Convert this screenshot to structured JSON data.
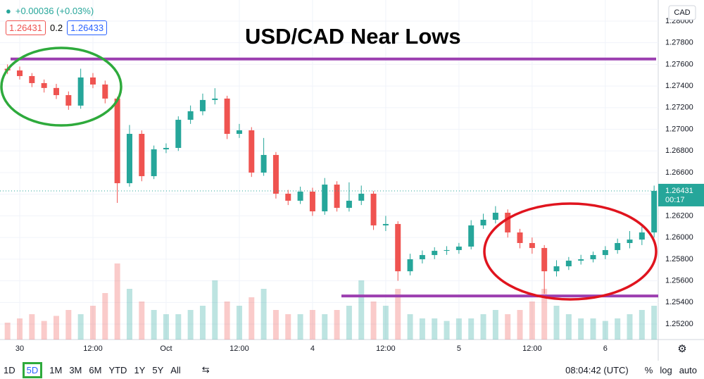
{
  "chart_data": {
    "type": "candlestick",
    "title": "USD/CAD Near Lows",
    "change": "+0.00036 (+0.03%)",
    "bid": 1.26431,
    "spread": 0.2,
    "ask": 1.26433,
    "currency": "CAD",
    "last_price": 1.26431,
    "countdown": "00:17",
    "categories": [
      null,
      "30",
      null,
      null,
      null,
      null,
      null,
      "12:00",
      null,
      null,
      null,
      null,
      null,
      "Oct",
      null,
      null,
      null,
      null,
      null,
      "12:00",
      null,
      null,
      null,
      null,
      null,
      "4",
      null,
      null,
      null,
      null,
      null,
      "12:00",
      null,
      null,
      null,
      null,
      null,
      "5",
      null,
      null,
      null,
      null,
      null,
      "12:00",
      null,
      null,
      null,
      null,
      null,
      "6",
      null,
      null,
      null,
      null
    ],
    "open": [
      1.2756,
      1.27544,
      1.27492,
      1.27427,
      1.27382,
      1.27316,
      1.27219,
      1.27479,
      1.27414,
      1.27284,
      1.26502,
      1.26958,
      1.26567,
      1.26815,
      1.26828,
      1.27088,
      1.27167,
      1.27271,
      1.27284,
      1.26958,
      1.26991,
      1.266,
      1.26763,
      1.26405,
      1.2634,
      1.26424,
      1.26242,
      1.26489,
      1.26274,
      1.2634,
      1.26405,
      1.26112,
      1.26125,
      1.25688,
      1.25799,
      1.25838,
      1.25877,
      1.25884,
      1.25916,
      1.26112,
      1.26164,
      1.26229,
      1.26047,
      1.25949,
      1.25903,
      1.25688,
      1.25734,
      1.25786,
      1.25799,
      1.25838,
      1.25884,
      1.25949,
      1.25981,
      1.26047
    ],
    "high": [
      1.276,
      1.2758,
      1.2752,
      1.2746,
      1.2742,
      1.2735,
      1.2756,
      1.2752,
      1.2745,
      1.273,
      1.2704,
      1.2699,
      1.2685,
      1.2687,
      1.2712,
      1.2722,
      1.2733,
      1.2738,
      1.2731,
      1.2705,
      1.2702,
      1.2692,
      1.2679,
      1.2644,
      1.2647,
      1.2646,
      1.2655,
      1.2652,
      1.2651,
      1.2648,
      1.2643,
      1.262,
      1.2615,
      1.2585,
      1.2588,
      1.2591,
      1.2592,
      1.2595,
      1.2616,
      1.2622,
      1.2629,
      1.2626,
      1.2608,
      1.26,
      1.2593,
      1.2579,
      1.2582,
      1.2584,
      1.2587,
      1.2592,
      1.2599,
      1.2606,
      1.261,
      1.2648
    ],
    "low": [
      1.2751,
      1.2746,
      1.2739,
      1.2734,
      1.2728,
      1.2718,
      1.2719,
      1.2738,
      1.2724,
      1.2632,
      1.2647,
      1.2652,
      1.2654,
      1.2678,
      1.268,
      1.2705,
      1.2713,
      1.2723,
      1.2691,
      1.2692,
      1.2656,
      1.2657,
      1.2636,
      1.263,
      1.2631,
      1.262,
      1.2621,
      1.2624,
      1.2624,
      1.263,
      1.2607,
      1.2606,
      1.256,
      1.2565,
      1.2576,
      1.258,
      1.2584,
      1.2585,
      1.2589,
      1.2608,
      1.2613,
      1.26,
      1.259,
      1.2585,
      1.2548,
      1.2564,
      1.257,
      1.2575,
      1.2577,
      1.258,
      1.2585,
      1.259,
      1.2593,
      1.26
    ],
    "close": [
      1.27544,
      1.27492,
      1.27427,
      1.27382,
      1.27316,
      1.27219,
      1.27479,
      1.27414,
      1.27284,
      1.26502,
      1.26958,
      1.26567,
      1.26815,
      1.26828,
      1.27088,
      1.27167,
      1.27271,
      1.27284,
      1.26958,
      1.26991,
      1.266,
      1.26763,
      1.26405,
      1.2634,
      1.26424,
      1.26242,
      1.26489,
      1.26274,
      1.2634,
      1.26405,
      1.26112,
      1.26125,
      1.25688,
      1.25799,
      1.25838,
      1.25877,
      1.25884,
      1.25916,
      1.26112,
      1.26164,
      1.26229,
      1.26047,
      1.25949,
      1.25903,
      1.25688,
      1.25734,
      1.25786,
      1.25799,
      1.25838,
      1.25884,
      1.25949,
      1.25981,
      1.26047,
      1.26431
    ],
    "volume": [
      20,
      25,
      30,
      22,
      28,
      35,
      30,
      40,
      55,
      90,
      60,
      45,
      35,
      30,
      30,
      35,
      40,
      70,
      45,
      40,
      50,
      60,
      35,
      30,
      30,
      35,
      30,
      35,
      40,
      70,
      45,
      40,
      60,
      30,
      25,
      25,
      22,
      25,
      25,
      30,
      35,
      30,
      35,
      45,
      60,
      40,
      30,
      25,
      25,
      22,
      25,
      30,
      35,
      40
    ],
    "up_color": "#26a69a",
    "down_color": "#ef5350",
    "levels": [
      {
        "value": 1.2765,
        "color": "#9c3fb0"
      },
      {
        "value": 1.2546,
        "color": "#9c3fb0"
      }
    ],
    "ylim": [
      1.25057,
      1.28195
    ],
    "yticks": [
      {
        "value": 1.28,
        "label": "1.28000"
      },
      {
        "value": 1.278,
        "label": "1.27800"
      },
      {
        "value": 1.276,
        "label": "1.27600"
      },
      {
        "value": 1.274,
        "label": "1.27400"
      },
      {
        "value": 1.272,
        "label": "1.27200"
      },
      {
        "value": 1.27,
        "label": "1.27000"
      },
      {
        "value": 1.268,
        "label": "1.26800"
      },
      {
        "value": 1.266,
        "label": "1.26600"
      },
      {
        "value": 1.264,
        "label": "1.26400"
      },
      {
        "value": 1.262,
        "label": "1.26200"
      },
      {
        "value": 1.26,
        "label": "1.26000"
      },
      {
        "value": 1.258,
        "label": "1.25800"
      },
      {
        "value": 1.256,
        "label": "1.25600"
      },
      {
        "value": 1.254,
        "label": "1.25400"
      },
      {
        "value": 1.252,
        "label": "1.25200"
      }
    ],
    "grid": true
  },
  "toolbar": {
    "ranges": [
      "1D",
      "5D",
      "1M",
      "3M",
      "6M",
      "YTD",
      "1Y",
      "5Y",
      "All"
    ],
    "time": "08:04:42 (UTC)",
    "options": [
      "%",
      "log",
      "auto"
    ]
  }
}
